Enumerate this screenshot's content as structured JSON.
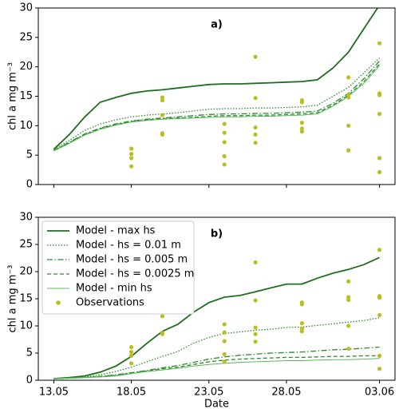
{
  "chart_data": [
    {
      "type": "line",
      "annotation": "a)",
      "ylabel": "chl a mg m⁻³",
      "xlim": [
        "12.05",
        "04.06"
      ],
      "xticks": [
        "13.05",
        "18.05",
        "23.05",
        "28.05",
        "03.06"
      ],
      "show_xtick_labels": false,
      "ylim": [
        0,
        30
      ],
      "yticks": [
        0,
        5,
        10,
        15,
        20,
        25,
        30
      ],
      "x": [
        "13.05",
        "14.05",
        "15.05",
        "16.05",
        "17.05",
        "18.05",
        "19.05",
        "20.05",
        "21.05",
        "22.05",
        "23.05",
        "24.05",
        "25.05",
        "26.05",
        "27.05",
        "28.05",
        "29.05",
        "30.05",
        "31.05",
        "01.06",
        "02.06",
        "03.06"
      ],
      "series": [
        {
          "color": "#1f6e1f",
          "style": "solid",
          "width": 1.8,
          "values": [
            6,
            8.5,
            11.5,
            14,
            14.8,
            15.5,
            15.9,
            16.1,
            16.4,
            16.7,
            17.0,
            17.1,
            17.1,
            17.2,
            17.3,
            17.4,
            17.5,
            17.8,
            19.8,
            22.5,
            26.5,
            30.5
          ]
        },
        {
          "color": "#2e8b2e",
          "style": "dotted",
          "width": 1.3,
          "values": [
            6,
            7.5,
            9.2,
            10.3,
            11,
            11.5,
            11.8,
            12,
            12.2,
            12.5,
            12.8,
            12.9,
            12.9,
            13,
            13,
            13.1,
            13.2,
            13.5,
            15,
            16.5,
            19,
            21.5
          ]
        },
        {
          "color": "#2e8b2e",
          "style": "dashdot",
          "width": 1.3,
          "values": [
            5.8,
            7.2,
            8.6,
            9.6,
            10.3,
            10.8,
            11.1,
            11.3,
            11.5,
            11.7,
            11.9,
            12,
            12,
            12.1,
            12.1,
            12.2,
            12.3,
            12.5,
            13.8,
            15.5,
            18,
            21
          ]
        },
        {
          "color": "#2e8b2e",
          "style": "dashed",
          "width": 1.3,
          "values": [
            5.8,
            7.1,
            8.5,
            9.5,
            10.2,
            10.7,
            11,
            11.2,
            11.3,
            11.4,
            11.6,
            11.7,
            11.7,
            11.8,
            11.8,
            11.9,
            12,
            12.2,
            13.5,
            15.2,
            17.5,
            20.5
          ]
        },
        {
          "color": "#5cb85c",
          "style": "solid",
          "width": 1,
          "values": [
            5.7,
            7,
            8.4,
            9.4,
            10.1,
            10.6,
            10.9,
            11.1,
            11.2,
            11.3,
            11.4,
            11.5,
            11.5,
            11.6,
            11.6,
            11.7,
            11.8,
            12,
            13.3,
            15,
            17.2,
            20.2
          ]
        },
        {
          "color": "#bcbd22",
          "style": "points",
          "x": [
            "18.05",
            "18.05",
            "18.05",
            "18.05",
            "20.05",
            "20.05",
            "20.05",
            "20.05",
            "20.05",
            "24.05",
            "24.05",
            "24.05",
            "24.05",
            "24.05",
            "26.05",
            "26.05",
            "26.05",
            "26.05",
            "26.05",
            "29.05",
            "29.05",
            "29.05",
            "29.05",
            "29.05",
            "01.06",
            "01.06",
            "01.06",
            "01.06",
            "01.06",
            "03.06",
            "03.06",
            "03.06",
            "03.06",
            "03.06",
            "03.06"
          ],
          "values": [
            3.1,
            4.5,
            5.2,
            6.1,
            8.5,
            8.7,
            11.8,
            14.3,
            14.8,
            3.4,
            4.8,
            7.2,
            8.8,
            10.3,
            7.1,
            8.5,
            9.7,
            14.7,
            21.7,
            9,
            9.5,
            10.5,
            14,
            14.3,
            5.8,
            10,
            14.8,
            15.3,
            18.2,
            2.1,
            4.5,
            12,
            15.2,
            15.5,
            24
          ]
        }
      ]
    },
    {
      "type": "line",
      "annotation": "b)",
      "ylabel": "chl a mg m⁻³",
      "xlabel": "Date",
      "legend": "upper left",
      "xlim": [
        "12.05",
        "04.06"
      ],
      "xticks": [
        "13.05",
        "18.05",
        "23.05",
        "28.05",
        "03.06"
      ],
      "show_xtick_labels": true,
      "ylim": [
        0,
        30
      ],
      "yticks": [
        0,
        5,
        10,
        15,
        20,
        25,
        30
      ],
      "x": [
        "13.05",
        "14.05",
        "15.05",
        "16.05",
        "17.05",
        "18.05",
        "19.05",
        "20.05",
        "21.05",
        "22.05",
        "23.05",
        "24.05",
        "25.05",
        "26.05",
        "27.05",
        "28.05",
        "29.05",
        "30.05",
        "31.05",
        "01.06",
        "02.06",
        "03.06"
      ],
      "series": [
        {
          "name": "Model - max hs",
          "color": "#1f6e1f",
          "style": "solid",
          "width": 1.8,
          "values": [
            0.3,
            0.5,
            0.8,
            1.5,
            2.6,
            4.4,
            6.8,
            9.0,
            10.3,
            12.5,
            14.3,
            15.3,
            15.6,
            16.3,
            17.0,
            17.7,
            17.7,
            18.8,
            19.7,
            20.4,
            21.3,
            22.6
          ]
        },
        {
          "name": "Model - hs = 0.01 m",
          "color": "#2e8b2e",
          "style": "dotted",
          "width": 1.3,
          "values": [
            0.3,
            0.4,
            0.6,
            1.0,
            1.6,
            2.4,
            3.4,
            4.4,
            5.3,
            6.8,
            7.9,
            8.6,
            8.9,
            9.2,
            9.4,
            9.7,
            9.8,
            10.1,
            10.4,
            10.7,
            11.0,
            11.5
          ]
        },
        {
          "name": "Model - hs = 0.005 m",
          "color": "#2e8b2e",
          "style": "dashdot",
          "width": 1.3,
          "values": [
            0.3,
            0.4,
            0.5,
            0.7,
            1.0,
            1.4,
            1.8,
            2.3,
            2.7,
            3.3,
            3.9,
            4.3,
            4.6,
            4.8,
            5.0,
            5.1,
            5.2,
            5.4,
            5.6,
            5.7,
            5.9,
            6.1
          ]
        },
        {
          "name": "Model - hs = 0.0025 m",
          "color": "#2e8b2e",
          "style": "dashed",
          "width": 1.3,
          "values": [
            0.3,
            0.4,
            0.5,
            0.7,
            0.9,
            1.3,
            1.7,
            2.1,
            2.4,
            2.9,
            3.4,
            3.7,
            3.9,
            4.0,
            4.1,
            4.2,
            4.2,
            4.3,
            4.4,
            4.4,
            4.5,
            4.5
          ]
        },
        {
          "name": "Model - min hs",
          "color": "#5cb85c",
          "style": "solid",
          "width": 1,
          "values": [
            0.3,
            0.4,
            0.5,
            0.6,
            0.8,
            1.2,
            1.6,
            1.9,
            2.2,
            2.6,
            2.9,
            3.1,
            3.3,
            3.4,
            3.5,
            3.6,
            3.6,
            3.7,
            3.8,
            3.8,
            3.9,
            4.0
          ]
        },
        {
          "name": "Observations",
          "color": "#bcbd22",
          "style": "points",
          "x": [
            "18.05",
            "18.05",
            "18.05",
            "18.05",
            "20.05",
            "20.05",
            "20.05",
            "20.05",
            "20.05",
            "24.05",
            "24.05",
            "24.05",
            "24.05",
            "24.05",
            "26.05",
            "26.05",
            "26.05",
            "26.05",
            "26.05",
            "29.05",
            "29.05",
            "29.05",
            "29.05",
            "29.05",
            "01.06",
            "01.06",
            "01.06",
            "01.06",
            "01.06",
            "03.06",
            "03.06",
            "03.06",
            "03.06",
            "03.06",
            "03.06"
          ],
          "values": [
            3.1,
            4.5,
            5.2,
            6.1,
            8.5,
            8.7,
            11.8,
            14.3,
            14.8,
            3.4,
            4.8,
            7.2,
            8.8,
            10.3,
            7.1,
            8.5,
            9.7,
            14.7,
            21.7,
            9,
            9.5,
            10.5,
            14,
            14.3,
            5.8,
            10,
            14.8,
            15.3,
            18.2,
            2.1,
            4.5,
            12,
            15.2,
            15.5,
            24
          ]
        }
      ]
    }
  ]
}
